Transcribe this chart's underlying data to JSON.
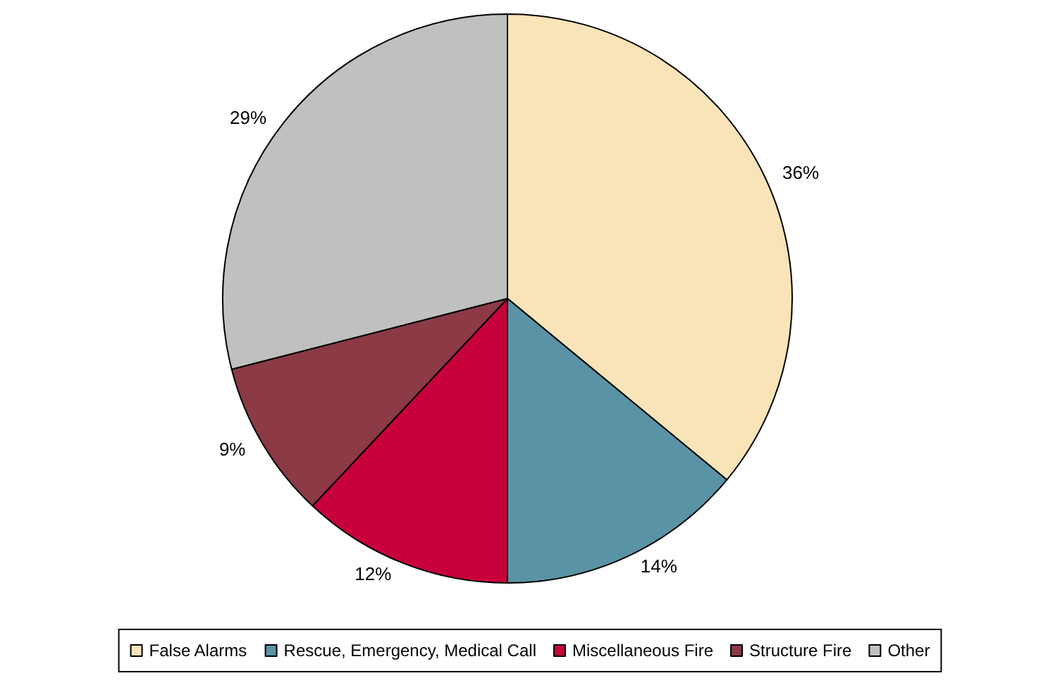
{
  "chart_data": {
    "type": "pie",
    "categories": [
      "False Alarms",
      "Rescue, Emergency, Medical Call",
      "Miscellaneous Fire",
      "Structure Fire",
      "Other"
    ],
    "values": [
      36,
      14,
      12,
      9,
      29
    ],
    "colors": [
      "#f8e4b8",
      "#5b93a6",
      "#c8003c",
      "#8b3a46",
      "#c0c0c0"
    ],
    "value_labels": [
      "36%",
      "14%",
      "12%",
      "9%",
      "29%"
    ],
    "legend": "bottom"
  }
}
